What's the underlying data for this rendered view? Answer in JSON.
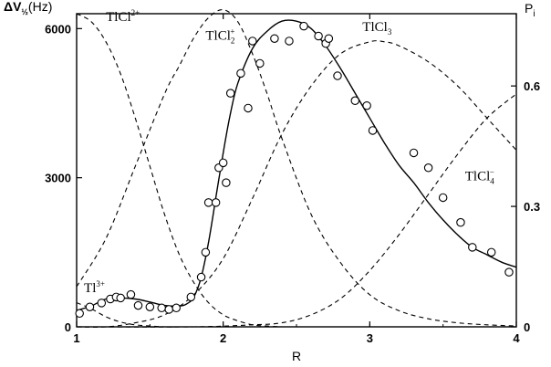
{
  "chart_data": {
    "type": "line",
    "ylabel_left_main": "ΔV",
    "ylabel_left_sub": "½",
    "ylabel_left_unit": "(Hz)",
    "ylabel_right": "P",
    "ylabel_right_sub": "i",
    "xlabel": "R",
    "xlim": [
      1,
      4
    ],
    "ylim_left": [
      0,
      6300
    ],
    "ylim_right": [
      0,
      0.78
    ],
    "x_ticks": [
      1,
      2,
      3,
      4
    ],
    "x_tick_labels": [
      "1",
      "2",
      "3",
      "4"
    ],
    "y_left_ticks": [
      0,
      3000,
      6000
    ],
    "y_left_tick_labels": [
      "0",
      "3000",
      "6000"
    ],
    "y_right_ticks": [
      0,
      0.3,
      0.6
    ],
    "y_right_tick_labels": [
      "0",
      "0.3",
      "0.6"
    ],
    "species_labels": [
      {
        "id": "tl",
        "base": "Tl",
        "sup": "3+",
        "sub": "",
        "x": 1.05,
        "y": 700
      },
      {
        "id": "tlcl",
        "base": "TlCl",
        "sup": "2+",
        "sub": "",
        "x": 1.2,
        "y": 6150
      },
      {
        "id": "tlcl2",
        "base": "TlCl",
        "sup": "+",
        "sub": "2",
        "x": 1.88,
        "y": 5780
      },
      {
        "id": "tlcl3",
        "base": "TlCl",
        "sup": "",
        "sub": "3",
        "x": 2.95,
        "y": 5950
      },
      {
        "id": "tlcl4",
        "base": "TlCl",
        "sup": "−",
        "sub": "4",
        "x": 3.65,
        "y": 2950
      }
    ],
    "series": [
      {
        "type": "scatter",
        "axis": "left",
        "x": [
          1.02,
          1.09,
          1.17,
          1.23,
          1.27,
          1.3,
          1.37,
          1.42,
          1.5,
          1.58,
          1.63,
          1.68,
          1.78,
          1.85,
          1.88,
          1.9,
          1.95,
          1.97,
          2.0,
          2.02,
          2.05,
          2.12,
          2.17,
          2.2,
          2.25,
          2.35,
          2.45,
          2.55,
          2.65,
          2.7,
          2.72,
          2.78,
          2.9,
          2.98,
          3.02,
          3.3,
          3.4,
          3.5,
          3.62,
          3.7,
          3.83,
          3.95
        ],
        "y": [
          270,
          400,
          480,
          560,
          600,
          580,
          650,
          430,
          400,
          380,
          350,
          380,
          600,
          1000,
          1500,
          2500,
          2500,
          3200,
          3300,
          2900,
          4700,
          5100,
          4400,
          5750,
          5300,
          5800,
          5750,
          6050,
          5850,
          5700,
          5800,
          5050,
          4550,
          4450,
          3950,
          3500,
          3200,
          2600,
          2100,
          1600,
          1500,
          1100
        ]
      },
      {
        "type": "line",
        "style": "solid",
        "axis": "left",
        "x": [
          1.0,
          1.1,
          1.2,
          1.3,
          1.4,
          1.5,
          1.6,
          1.7,
          1.75,
          1.8,
          1.85,
          1.9,
          1.95,
          2.0,
          2.05,
          2.1,
          2.2,
          2.3,
          2.4,
          2.5,
          2.6,
          2.7,
          2.8,
          2.9,
          3.0,
          3.1,
          3.2,
          3.3,
          3.4,
          3.5,
          3.6,
          3.7,
          3.8,
          3.9,
          4.0
        ],
        "y": [
          330,
          420,
          560,
          580,
          560,
          500,
          430,
          420,
          460,
          600,
          1000,
          1700,
          2600,
          3500,
          4300,
          4900,
          5600,
          5950,
          6150,
          6150,
          6000,
          5650,
          5200,
          4700,
          4200,
          3700,
          3250,
          2900,
          2500,
          2150,
          1850,
          1600,
          1450,
          1300,
          1200
        ]
      },
      {
        "type": "line",
        "style": "dashed",
        "axis": "right",
        "name": "TlCl2+",
        "x": [
          1.0,
          1.1,
          1.2,
          1.3,
          1.4,
          1.5,
          1.6,
          1.7,
          1.8,
          1.9,
          2.0,
          2.1,
          2.2,
          2.3,
          2.4
        ],
        "y": [
          0.78,
          0.76,
          0.71,
          0.63,
          0.52,
          0.4,
          0.28,
          0.18,
          0.11,
          0.06,
          0.03,
          0.015,
          0.005,
          0.002,
          0.0
        ]
      },
      {
        "type": "line",
        "style": "dashed",
        "axis": "right",
        "name": "TlCl2 +",
        "x": [
          1.0,
          1.2,
          1.4,
          1.6,
          1.7,
          1.8,
          1.9,
          2.0,
          2.1,
          2.2,
          2.3,
          2.4,
          2.6,
          2.8,
          3.0,
          3.2,
          3.4,
          3.6,
          3.8,
          4.0
        ],
        "y": [
          0.1,
          0.22,
          0.4,
          0.58,
          0.65,
          0.72,
          0.77,
          0.79,
          0.76,
          0.68,
          0.58,
          0.47,
          0.28,
          0.16,
          0.08,
          0.04,
          0.02,
          0.01,
          0.005,
          0.002
        ]
      },
      {
        "type": "line",
        "style": "dashed",
        "axis": "right",
        "name": "TlCl3",
        "x": [
          1.0,
          1.2,
          1.4,
          1.6,
          1.8,
          2.0,
          2.2,
          2.4,
          2.6,
          2.8,
          3.0,
          3.1,
          3.2,
          3.4,
          3.6,
          3.8,
          4.0
        ],
        "y": [
          0.0,
          0.0,
          0.01,
          0.03,
          0.08,
          0.17,
          0.32,
          0.48,
          0.6,
          0.68,
          0.71,
          0.71,
          0.7,
          0.66,
          0.6,
          0.52,
          0.44
        ]
      },
      {
        "type": "line",
        "style": "dashed",
        "axis": "right",
        "name": "TlCl4-",
        "x": [
          1.0,
          1.8,
          2.2,
          2.4,
          2.6,
          2.8,
          3.0,
          3.2,
          3.4,
          3.6,
          3.8,
          4.0
        ],
        "y": [
          0.0,
          0.0,
          0.005,
          0.01,
          0.03,
          0.07,
          0.14,
          0.23,
          0.33,
          0.43,
          0.52,
          0.58
        ]
      },
      {
        "type": "line",
        "style": "dashed",
        "axis": "right",
        "name": "Tl3+",
        "x": [
          1.0,
          1.1,
          1.2,
          1.3,
          1.4,
          1.5,
          1.6,
          1.7,
          1.8
        ],
        "y": [
          0.06,
          0.045,
          0.025,
          0.012,
          0.005,
          0.002,
          0.0,
          0.0,
          0.0
        ]
      }
    ]
  }
}
